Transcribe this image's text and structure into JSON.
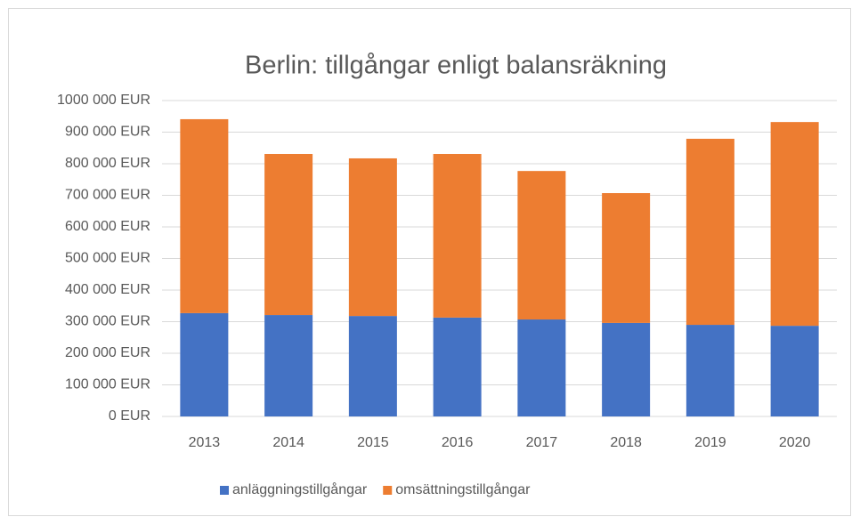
{
  "chart_data": {
    "type": "stacked_bar",
    "title": "Berlin: tillgångar enligt balansräkning",
    "categories": [
      "2013",
      "2014",
      "2015",
      "2016",
      "2017",
      "2018",
      "2019",
      "2020"
    ],
    "series": [
      {
        "name": "anläggningstillgångar",
        "color": "#4472c4",
        "values": [
          327000,
          321000,
          318000,
          313000,
          307000,
          296000,
          290000,
          287000
        ]
      },
      {
        "name": "omsättningstillgångar",
        "color": "#ed7d31",
        "values": [
          614000,
          510000,
          499000,
          518000,
          470000,
          411000,
          589000,
          645000
        ]
      }
    ],
    "ylim": [
      0,
      1000000
    ],
    "yticks": [
      {
        "value": 0,
        "label": "0 EUR"
      },
      {
        "value": 100000,
        "label": "100 000 EUR"
      },
      {
        "value": 200000,
        "label": "200 000 EUR"
      },
      {
        "value": 300000,
        "label": "300 000 EUR"
      },
      {
        "value": 400000,
        "label": "400 000 EUR"
      },
      {
        "value": 500000,
        "label": "500 000 EUR"
      },
      {
        "value": 600000,
        "label": "600 000 EUR"
      },
      {
        "value": 700000,
        "label": "700 000 EUR"
      },
      {
        "value": 800000,
        "label": "800 000 EUR"
      },
      {
        "value": 900000,
        "label": "900 000 EUR"
      },
      {
        "value": 1000000,
        "label": "1000 000 EUR"
      }
    ],
    "grid": true,
    "legend": "bottom"
  }
}
